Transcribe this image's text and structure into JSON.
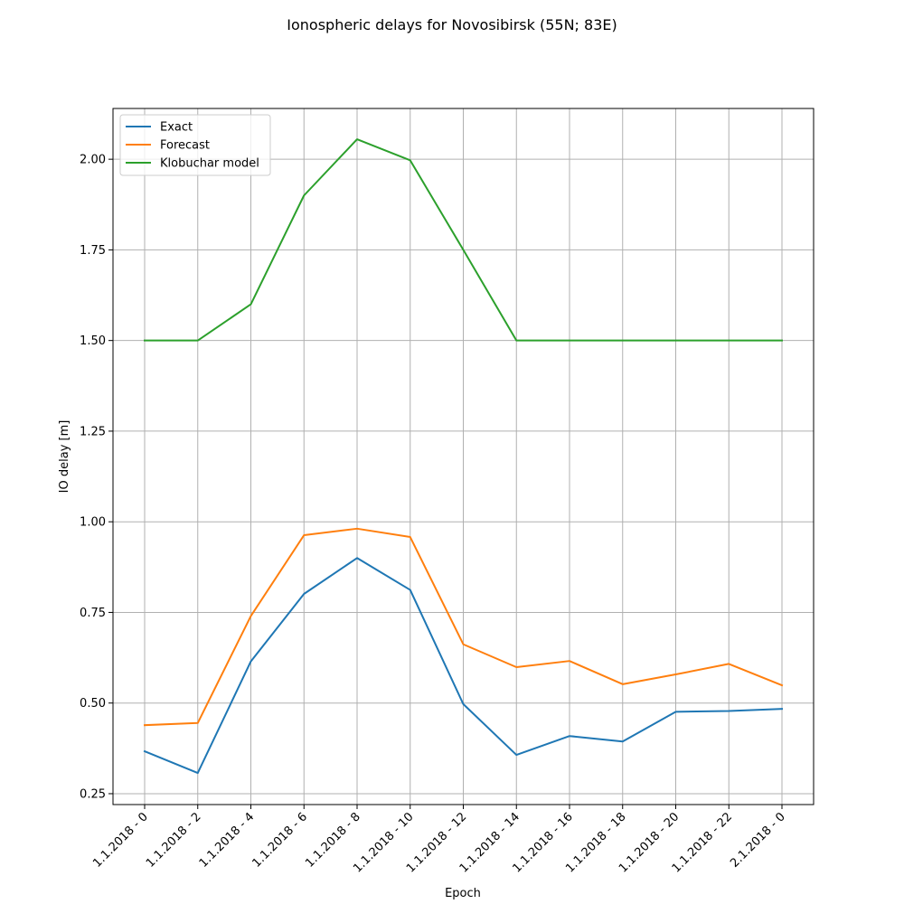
{
  "chart_data": {
    "type": "line",
    "title": "Ionospheric delays for Novosibirsk (55N; 83E)",
    "xlabel": "Epoch",
    "ylabel": "IO delay [m]",
    "categories": [
      "1.1.2018 - 0",
      "1.1.2018 - 2",
      "1.1.2018 - 4",
      "1.1.2018 - 6",
      "1.1.2018 - 8",
      "1.1.2018 - 10",
      "1.1.2018 - 12",
      "1.1.2018 - 14",
      "1.1.2018 - 16",
      "1.1.2018 - 18",
      "1.1.2018 - 20",
      "1.1.2018 - 22",
      "2.1.2018 - 0"
    ],
    "ylim": [
      0.22,
      2.14
    ],
    "yticks": [
      0.25,
      0.5,
      0.75,
      1.0,
      1.25,
      1.5,
      1.75,
      2.0
    ],
    "ytick_labels": [
      "0.25",
      "0.50",
      "0.75",
      "1.00",
      "1.25",
      "1.50",
      "1.75",
      "2.00"
    ],
    "grid": true,
    "legend_position": "top-left",
    "series": [
      {
        "name": "Exact",
        "color": "#1f77b4",
        "values": [
          0.367,
          0.307,
          0.615,
          0.801,
          0.9,
          0.812,
          0.497,
          0.357,
          0.409,
          0.394,
          0.476,
          0.478,
          0.484
        ]
      },
      {
        "name": "Forecast",
        "color": "#ff7f0e",
        "values": [
          0.439,
          0.445,
          0.74,
          0.963,
          0.981,
          0.958,
          0.662,
          0.599,
          0.616,
          0.552,
          0.579,
          0.608,
          0.549
        ]
      },
      {
        "name": "Klobuchar model",
        "color": "#2ca02c",
        "values": [
          1.5,
          1.5,
          1.6,
          1.9,
          2.055,
          1.997,
          1.75,
          1.5,
          1.5,
          1.5,
          1.5,
          1.5,
          1.5
        ]
      }
    ]
  }
}
